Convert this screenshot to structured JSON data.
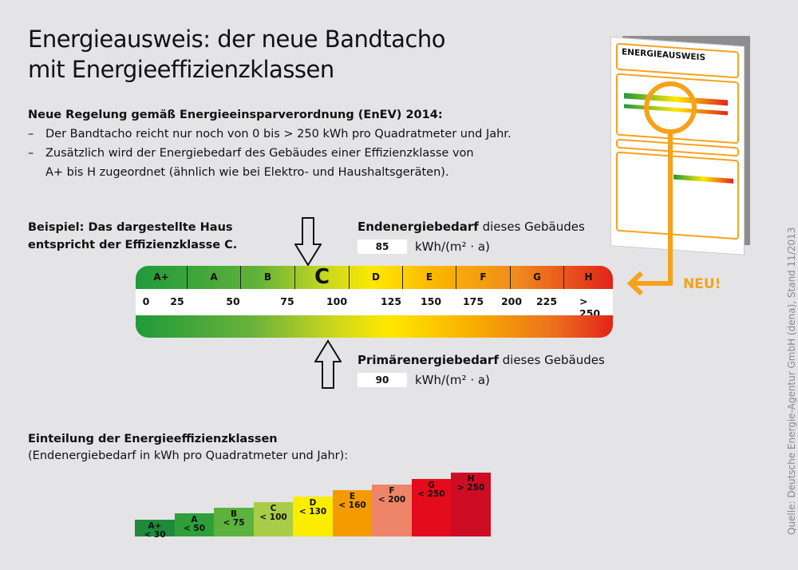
{
  "title": {
    "line1": "Energieausweis: der neue Bandtacho",
    "line2": "mit Energieeffizienzklassen"
  },
  "intro": {
    "heading": "Neue Regelung gemäß Energieeinsparverordnung (EnEV) 2014:",
    "bullets": [
      "Der Bandtacho reicht nur noch von 0 bis > 250 kWh pro Quadratmeter und Jahr.",
      "Zusätzlich wird der Energiebedarf des Gebäudes einer Effizienzklasse von",
      "A+ bis H zugeordnet (ähnlich wie bei Elektro- und Haushaltsgeräten)."
    ],
    "dash": "–"
  },
  "example": {
    "line1": "Beispiel: Das dargestellte Haus",
    "line2": "entspricht der Effizienzklasse C."
  },
  "end_energy": {
    "label_bold": "Endenergiebedarf",
    "label_rest": " dieses Gebäudes",
    "value": "85",
    "unit": "kWh/(m² · a)"
  },
  "primary_energy": {
    "label_bold": "Primärenergiebedarf",
    "label_rest": " dieses Gebäudes",
    "value": "90",
    "unit": "kWh/(m² · a)"
  },
  "tacho": {
    "classes": [
      "A+",
      "A",
      "B",
      "C",
      "D",
      "E",
      "F",
      "G",
      "H"
    ],
    "highlighted_class": "C",
    "scale": [
      "0",
      "25",
      "50",
      "75",
      "100",
      "125",
      "150",
      "175",
      "200",
      "225",
      "> 250"
    ]
  },
  "document": {
    "title": "ENERGIEAUSWEIS"
  },
  "neu_label": "NEU!",
  "source": "Quelle: Deutsche Energie-Agentur GmbH (dena), Stand 11/2013",
  "scale_section": {
    "heading": "Einteilung der Energieeffizienzklassen",
    "sub": "(Endenergiebedarf in kWh pro Quadratmeter  und Jahr):",
    "classes": [
      {
        "label": "A+",
        "limit": "< 30",
        "color": "#1d8a3c"
      },
      {
        "label": "A",
        "limit": "< 50",
        "color": "#2e9f3a"
      },
      {
        "label": "B",
        "limit": "< 75",
        "color": "#5cb23d"
      },
      {
        "label": "C",
        "limit": "< 100",
        "color": "#a9cd48"
      },
      {
        "label": "D",
        "limit": "< 130",
        "color": "#fcec00"
      },
      {
        "label": "E",
        "limit": "< 160",
        "color": "#f39a00"
      },
      {
        "label": "F",
        "limit": "< 200",
        "color": "#ee8468"
      },
      {
        "label": "G",
        "limit": "< 250",
        "color": "#e30b1c"
      },
      {
        "label": "H",
        "limit": "> 250",
        "color": "#cc0d24"
      }
    ]
  },
  "colors": {
    "accent": "#f5a21b",
    "background": "#e4e4e6"
  }
}
